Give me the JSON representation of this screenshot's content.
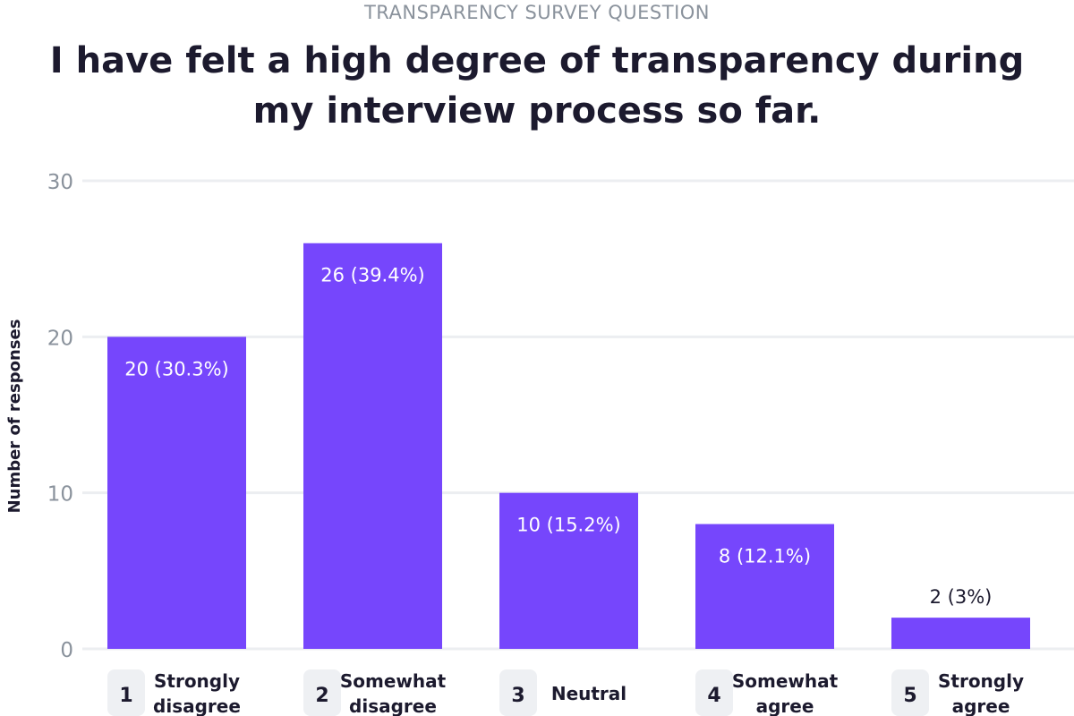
{
  "chart_data": {
    "type": "bar",
    "kicker": "TRANSPARENCY SURVEY QUESTION",
    "title": "I have felt a high degree of transparency during my interview process so far.",
    "ylabel": "Number of responses",
    "ylim": [
      0,
      30
    ],
    "yticks": [
      0,
      10,
      20,
      30
    ],
    "grid": true,
    "bar_color": "#7646fc",
    "categories": [
      {
        "number": "1",
        "label_lines": [
          "Strongly",
          "disagree"
        ]
      },
      {
        "number": "2",
        "label_lines": [
          "Somewhat",
          "disagree"
        ]
      },
      {
        "number": "3",
        "label_lines": [
          "Neutral"
        ]
      },
      {
        "number": "4",
        "label_lines": [
          "Somewhat",
          "agree"
        ]
      },
      {
        "number": "5",
        "label_lines": [
          "Strongly",
          "agree"
        ]
      }
    ],
    "values": [
      20,
      26,
      10,
      8,
      2
    ],
    "data_labels": [
      "20 (30.3%)",
      "26 (39.4%)",
      "10 (15.2%)",
      "8 (12.1%)",
      "2 (3%)"
    ]
  }
}
